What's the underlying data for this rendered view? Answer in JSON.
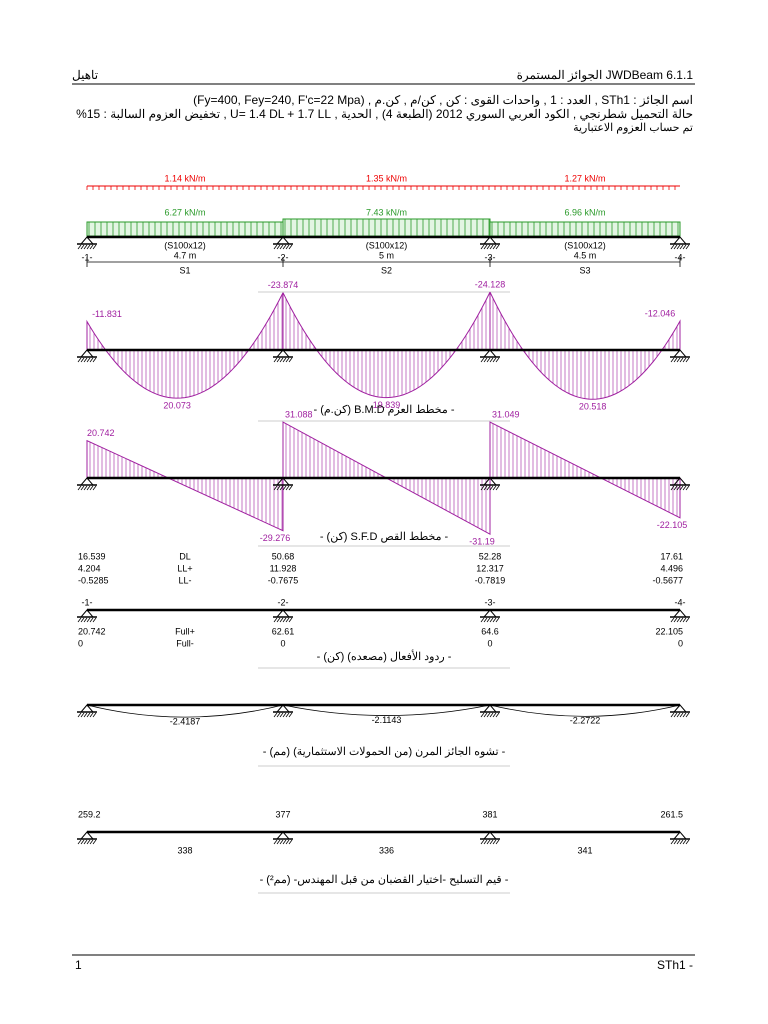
{
  "header": {
    "left": "تاهيل",
    "right": "JWDBeam 6.1.1 الجوائز المستمرة"
  },
  "info": [
    "اسم الجائز : STh1 , العدد : 1 , واحدات القوى : كن , كن/م , كن.م , (Fy=400, Fey=240, F'c=22 Mpa)",
    "حالة التحميل شطرنجي , الكود العربي السوري 2012 (الطبعة 4) , الحدية , U= 1.4 DL + 1.7 LL , تخفيض العزوم السالبة : 15%",
    "تم حساب العزوم الاعتبارية"
  ],
  "loads": {
    "upper": [
      "1.14 kN/m",
      "1.35 kN/m",
      "1.27 kN/m"
    ],
    "lower": [
      "6.27 kN/m",
      "7.43 kN/m",
      "6.96 kN/m"
    ]
  },
  "spans": [
    {
      "section": "(S100x12)",
      "length": "4.7 m",
      "name": "S1"
    },
    {
      "section": "(S100x12)",
      "length": "5 m",
      "name": "S2"
    },
    {
      "section": "(S100x12)",
      "length": "4.5 m",
      "name": "S3"
    }
  ],
  "supports": [
    "-1-",
    "-2-",
    "-3-",
    "-4-"
  ],
  "bmd": {
    "support_moments": [
      -11.831,
      -23.874,
      -24.128,
      -12.046
    ],
    "span_moments": [
      20.073,
      19.839,
      20.518
    ],
    "caption": "- مخطط العزم B.M.D (كن.م) -"
  },
  "sfd": {
    "left": [
      20.742,
      31.088,
      31.049
    ],
    "right": [
      -29.276,
      -31.19,
      -22.105
    ],
    "caption": "- مخطط القص S.F.D (كن) -"
  },
  "reactions": {
    "rows": [
      {
        "label": "DL",
        "values": [
          16.539,
          50.68,
          52.28,
          17.61
        ]
      },
      {
        "label": "LL+",
        "values": [
          4.204,
          11.928,
          12.317,
          4.496
        ]
      },
      {
        "label": "LL-",
        "values": [
          -0.5285,
          -0.7675,
          -0.7819,
          -0.5677
        ]
      }
    ],
    "factored": [
      {
        "label": "Full+",
        "values": [
          20.742,
          62.61,
          64.6,
          22.105
        ]
      },
      {
        "label": "Full-",
        "values": [
          0,
          0,
          0,
          0
        ]
      }
    ],
    "caption": "- ردود الأفعال (مصعده) (كن) -"
  },
  "deflection": {
    "values": [
      -2.4187,
      -2.1143,
      -2.2722
    ],
    "caption": "- تشوه الجائز المرن (من الحمولات الاستثمارية) (مم) -"
  },
  "reinforcement": {
    "top": [
      259.2,
      377,
      381,
      261.5
    ],
    "bottom": [
      338,
      336,
      341
    ],
    "caption": "- قيم التسليح -اختيار القضبان من قبل المهندس- (مم²) -"
  },
  "footer": {
    "left": "1",
    "right": "STh1 -"
  }
}
